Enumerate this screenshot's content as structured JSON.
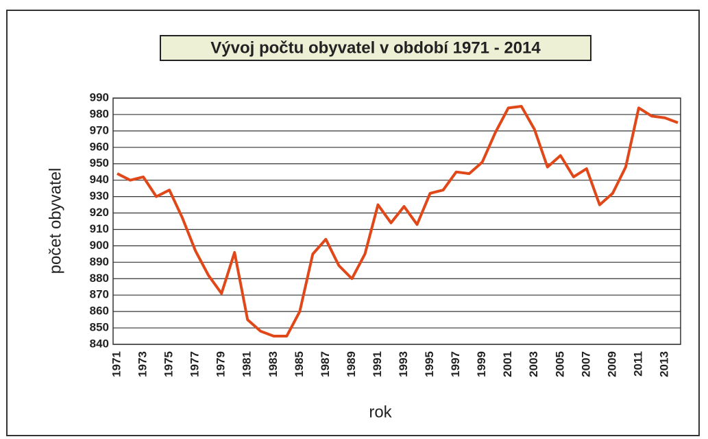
{
  "chart_data": {
    "type": "line",
    "title": "Vývoj počtu obyvatel v období 1971 - 2014",
    "xlabel": "rok",
    "ylabel": "počet obyvatel",
    "categories": [
      "1971",
      null,
      "1973",
      null,
      "1975",
      null,
      "1977",
      null,
      "1979",
      null,
      "1981",
      null,
      "1983",
      null,
      "1985",
      null,
      "1987",
      null,
      "1989",
      null,
      "1991",
      null,
      "1993",
      null,
      "1995",
      null,
      "1997",
      null,
      "1999",
      null,
      "2001",
      null,
      "2003",
      null,
      "2005",
      null,
      "2007",
      null,
      "2009",
      null,
      "2011",
      null,
      "2013",
      null
    ],
    "series": [
      {
        "name": "počet obyvatel",
        "color": "#e0481a",
        "values": [
          944,
          940,
          942,
          930,
          934,
          917,
          897,
          882,
          871,
          896,
          855,
          848,
          845,
          845,
          860,
          895,
          904,
          888,
          880,
          895,
          925,
          914,
          924,
          913,
          932,
          934,
          945,
          944,
          951,
          969,
          984,
          985,
          971,
          948,
          955,
          942,
          947,
          925,
          932,
          948,
          984,
          979,
          978,
          975
        ]
      }
    ],
    "ylim": [
      840,
      990
    ],
    "yticks": [
      840,
      850,
      860,
      870,
      880,
      890,
      900,
      910,
      920,
      930,
      940,
      950,
      960,
      970,
      980,
      990
    ],
    "grid": true
  }
}
